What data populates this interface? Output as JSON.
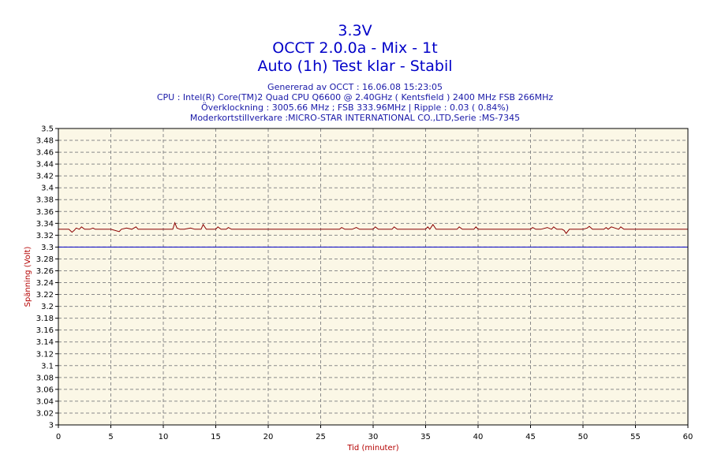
{
  "header": {
    "title": "3.3V",
    "subtitle": "OCCT 2.0.0a - Mix - 1t",
    "status": "Auto (1h) Test klar - Stabil",
    "info_lines": [
      "Genererad av OCCT : 16.06.08 15:23:05",
      "CPU : Intel(R) Core(TM)2 Quad CPU Q6600 @ 2.40GHz ( Kentsfield ) 2400 MHz FSB 266MHz",
      "Överklockning : 3005.66 MHz ; FSB 333.96MHz | Ripple : 0.03 ( 0.84%)",
      "Moderkortstillverkare :MICRO-STAR INTERNATIONAL CO.,LTD,Serie :MS-7345"
    ]
  },
  "colors": {
    "plot_background": "#fbf7e6",
    "series_line": "#8b0000",
    "reference_line": "#0000c8",
    "grid": "#8a8a8a",
    "title_text": "#0000c8",
    "axis_label": "#b40000"
  },
  "chart_data": {
    "type": "line",
    "title": "3.3V",
    "xlabel": "Tid (minuter)",
    "ylabel": "Spänning (Volt)",
    "xlim": [
      0,
      60
    ],
    "ylim": [
      3.0,
      3.5
    ],
    "x_ticks": [
      0,
      5,
      10,
      15,
      20,
      25,
      30,
      35,
      40,
      45,
      50,
      55,
      60
    ],
    "y_ticks": [
      3,
      3.02,
      3.04,
      3.06,
      3.08,
      3.1,
      3.12,
      3.14,
      3.16,
      3.18,
      3.2,
      3.22,
      3.24,
      3.26,
      3.28,
      3.3,
      3.32,
      3.34,
      3.36,
      3.38,
      3.4,
      3.42,
      3.44,
      3.46,
      3.48,
      3.5
    ],
    "grid": true,
    "series": [
      {
        "x": [
          0,
          1.0,
          1.3,
          1.5,
          1.7,
          2.0,
          2.2,
          2.5,
          3.0,
          3.3,
          3.5,
          4.0,
          5.0,
          5.8,
          6.0,
          6.5,
          7.0,
          7.4,
          7.6,
          8.0,
          9.0,
          10.0,
          10.9,
          11.1,
          11.3,
          11.6,
          12.0,
          12.6,
          13.0,
          13.6,
          13.8,
          14.1,
          14.5,
          15.0,
          15.2,
          15.5,
          16.0,
          16.2,
          16.5,
          20.0,
          23.0,
          25.0,
          26.8,
          27.0,
          27.3,
          28.0,
          28.4,
          28.7,
          30.0,
          30.2,
          30.5,
          31.8,
          32.0,
          32.3,
          35.0,
          35.2,
          35.4,
          35.7,
          36.0,
          37.0,
          38.0,
          38.2,
          38.5,
          39.6,
          39.8,
          40.0,
          42.0,
          45.0,
          45.2,
          45.5,
          46.0,
          46.6,
          47.0,
          47.2,
          47.5,
          48.0,
          48.2,
          48.4,
          48.7,
          49.0,
          50.0,
          50.4,
          50.6,
          50.9,
          51.5,
          52.0,
          52.2,
          52.4,
          52.7,
          53.4,
          53.6,
          53.9,
          55.0,
          60.0
        ],
        "y": [
          3.33,
          3.33,
          3.325,
          3.328,
          3.332,
          3.33,
          3.334,
          3.33,
          3.33,
          3.332,
          3.33,
          3.33,
          3.33,
          3.326,
          3.33,
          3.332,
          3.33,
          3.334,
          3.33,
          3.33,
          3.33,
          3.33,
          3.33,
          3.341,
          3.332,
          3.33,
          3.33,
          3.332,
          3.33,
          3.33,
          3.338,
          3.33,
          3.33,
          3.33,
          3.334,
          3.33,
          3.33,
          3.333,
          3.33,
          3.33,
          3.33,
          3.33,
          3.33,
          3.333,
          3.33,
          3.33,
          3.333,
          3.33,
          3.33,
          3.334,
          3.33,
          3.33,
          3.334,
          3.33,
          3.33,
          3.334,
          3.33,
          3.338,
          3.33,
          3.33,
          3.33,
          3.334,
          3.33,
          3.33,
          3.334,
          3.33,
          3.33,
          3.33,
          3.333,
          3.33,
          3.33,
          3.333,
          3.33,
          3.334,
          3.33,
          3.33,
          3.328,
          3.323,
          3.33,
          3.33,
          3.33,
          3.332,
          3.335,
          3.33,
          3.33,
          3.33,
          3.333,
          3.33,
          3.334,
          3.33,
          3.334,
          3.33,
          3.33,
          3.33
        ]
      },
      {
        "x": [
          0,
          60
        ],
        "y": [
          3.3,
          3.3
        ]
      }
    ]
  }
}
